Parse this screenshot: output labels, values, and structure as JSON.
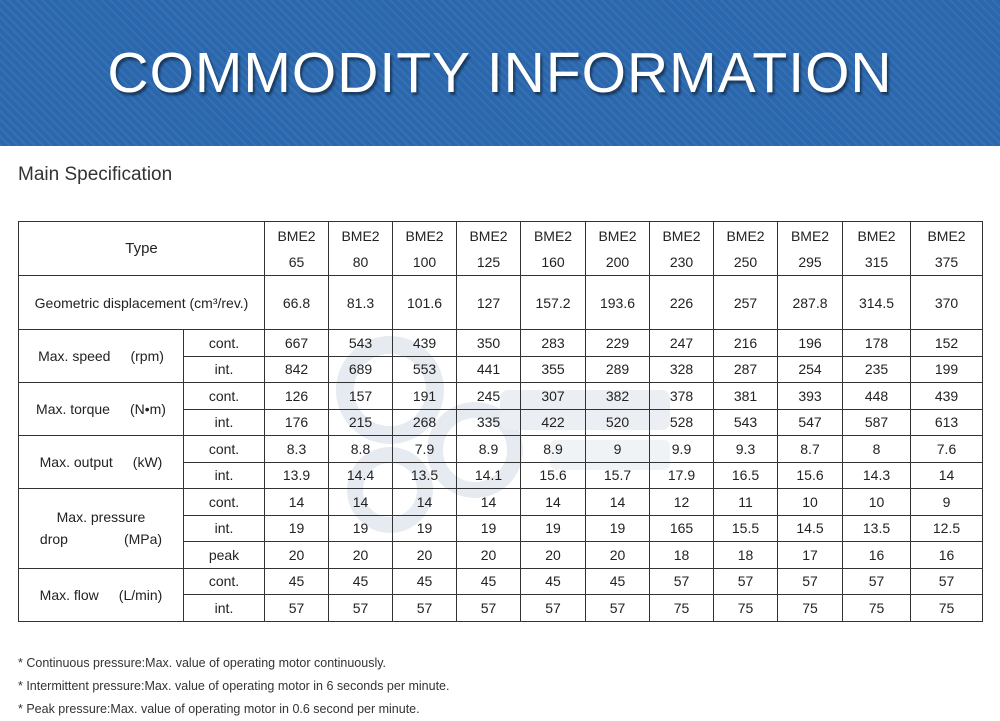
{
  "header": {
    "title": "COMMODITY INFORMATION"
  },
  "section_title": "Main Specification",
  "table": {
    "type_label": "Type",
    "models": [
      [
        "BME2",
        "65"
      ],
      [
        "BME2",
        "80"
      ],
      [
        "BME2",
        "100"
      ],
      [
        "BME2",
        "125"
      ],
      [
        "BME2",
        "160"
      ],
      [
        "BME2",
        "200"
      ],
      [
        "BME2",
        "230"
      ],
      [
        "BME2",
        "250"
      ],
      [
        "BME2",
        "295"
      ],
      [
        "BME2",
        "315"
      ],
      [
        "BME2",
        "375"
      ]
    ],
    "displacement": {
      "label": "Geometric displacement (cm³/rev.)",
      "values": [
        "66.8",
        "81.3",
        "101.6",
        "127",
        "157.2",
        "193.6",
        "226",
        "257",
        "287.8",
        "314.5",
        "370"
      ]
    },
    "groups": [
      {
        "name": "Max. speed",
        "unit": "(rpm)",
        "rows": [
          {
            "sub": "cont.",
            "values": [
              "667",
              "543",
              "439",
              "350",
              "283",
              "229",
              "247",
              "216",
              "196",
              "178",
              "152"
            ]
          },
          {
            "sub": "int.",
            "values": [
              "842",
              "689",
              "553",
              "441",
              "355",
              "289",
              "328",
              "287",
              "254",
              "235",
              "199"
            ]
          }
        ]
      },
      {
        "name": "Max. torque",
        "unit": "(N•m)",
        "rows": [
          {
            "sub": "cont.",
            "values": [
              "126",
              "157",
              "191",
              "245",
              "307",
              "382",
              "378",
              "381",
              "393",
              "448",
              "439"
            ]
          },
          {
            "sub": "int.",
            "values": [
              "176",
              "215",
              "268",
              "335",
              "422",
              "520",
              "528",
              "543",
              "547",
              "587",
              "613"
            ]
          }
        ]
      },
      {
        "name": "Max. output",
        "unit": "(kW)",
        "rows": [
          {
            "sub": "cont.",
            "values": [
              "8.3",
              "8.8",
              "7.9",
              "8.9",
              "8.9",
              "9",
              "9.9",
              "9.3",
              "8.7",
              "8",
              "7.6"
            ]
          },
          {
            "sub": "int.",
            "values": [
              "13.9",
              "14.4",
              "13.5",
              "14.1",
              "15.6",
              "15.7",
              "17.9",
              "16.5",
              "15.6",
              "14.3",
              "14"
            ]
          }
        ]
      },
      {
        "name": "Max. pressure",
        "name2": "drop",
        "unit": "(MPa)",
        "rows": [
          {
            "sub": "cont.",
            "values": [
              "14",
              "14",
              "14",
              "14",
              "14",
              "14",
              "12",
              "11",
              "10",
              "10",
              "9"
            ]
          },
          {
            "sub": "int.",
            "values": [
              "19",
              "19",
              "19",
              "19",
              "19",
              "19",
              "165",
              "15.5",
              "14.5",
              "13.5",
              "12.5"
            ]
          },
          {
            "sub": "peak",
            "values": [
              "20",
              "20",
              "20",
              "20",
              "20",
              "20",
              "18",
              "18",
              "17",
              "16",
              "16"
            ]
          }
        ]
      },
      {
        "name": "Max. flow",
        "unit": "(L/min)",
        "rows": [
          {
            "sub": "cont.",
            "values": [
              "45",
              "45",
              "45",
              "45",
              "45",
              "45",
              "57",
              "57",
              "57",
              "57",
              "57"
            ]
          },
          {
            "sub": "int.",
            "values": [
              "57",
              "57",
              "57",
              "57",
              "57",
              "57",
              "75",
              "75",
              "75",
              "75",
              "75"
            ]
          }
        ]
      }
    ]
  },
  "notes": [
    "* Continuous pressure:Max. value of operating motor continuously.",
    "* Intermittent pressure:Max. value of operating motor in 6 seconds per minute.",
    "* Peak pressure:Max. value of operating motor in 0.6 second per minute."
  ],
  "colors": {
    "banner": "#2a67ad",
    "banner_text": "#ffffff"
  }
}
